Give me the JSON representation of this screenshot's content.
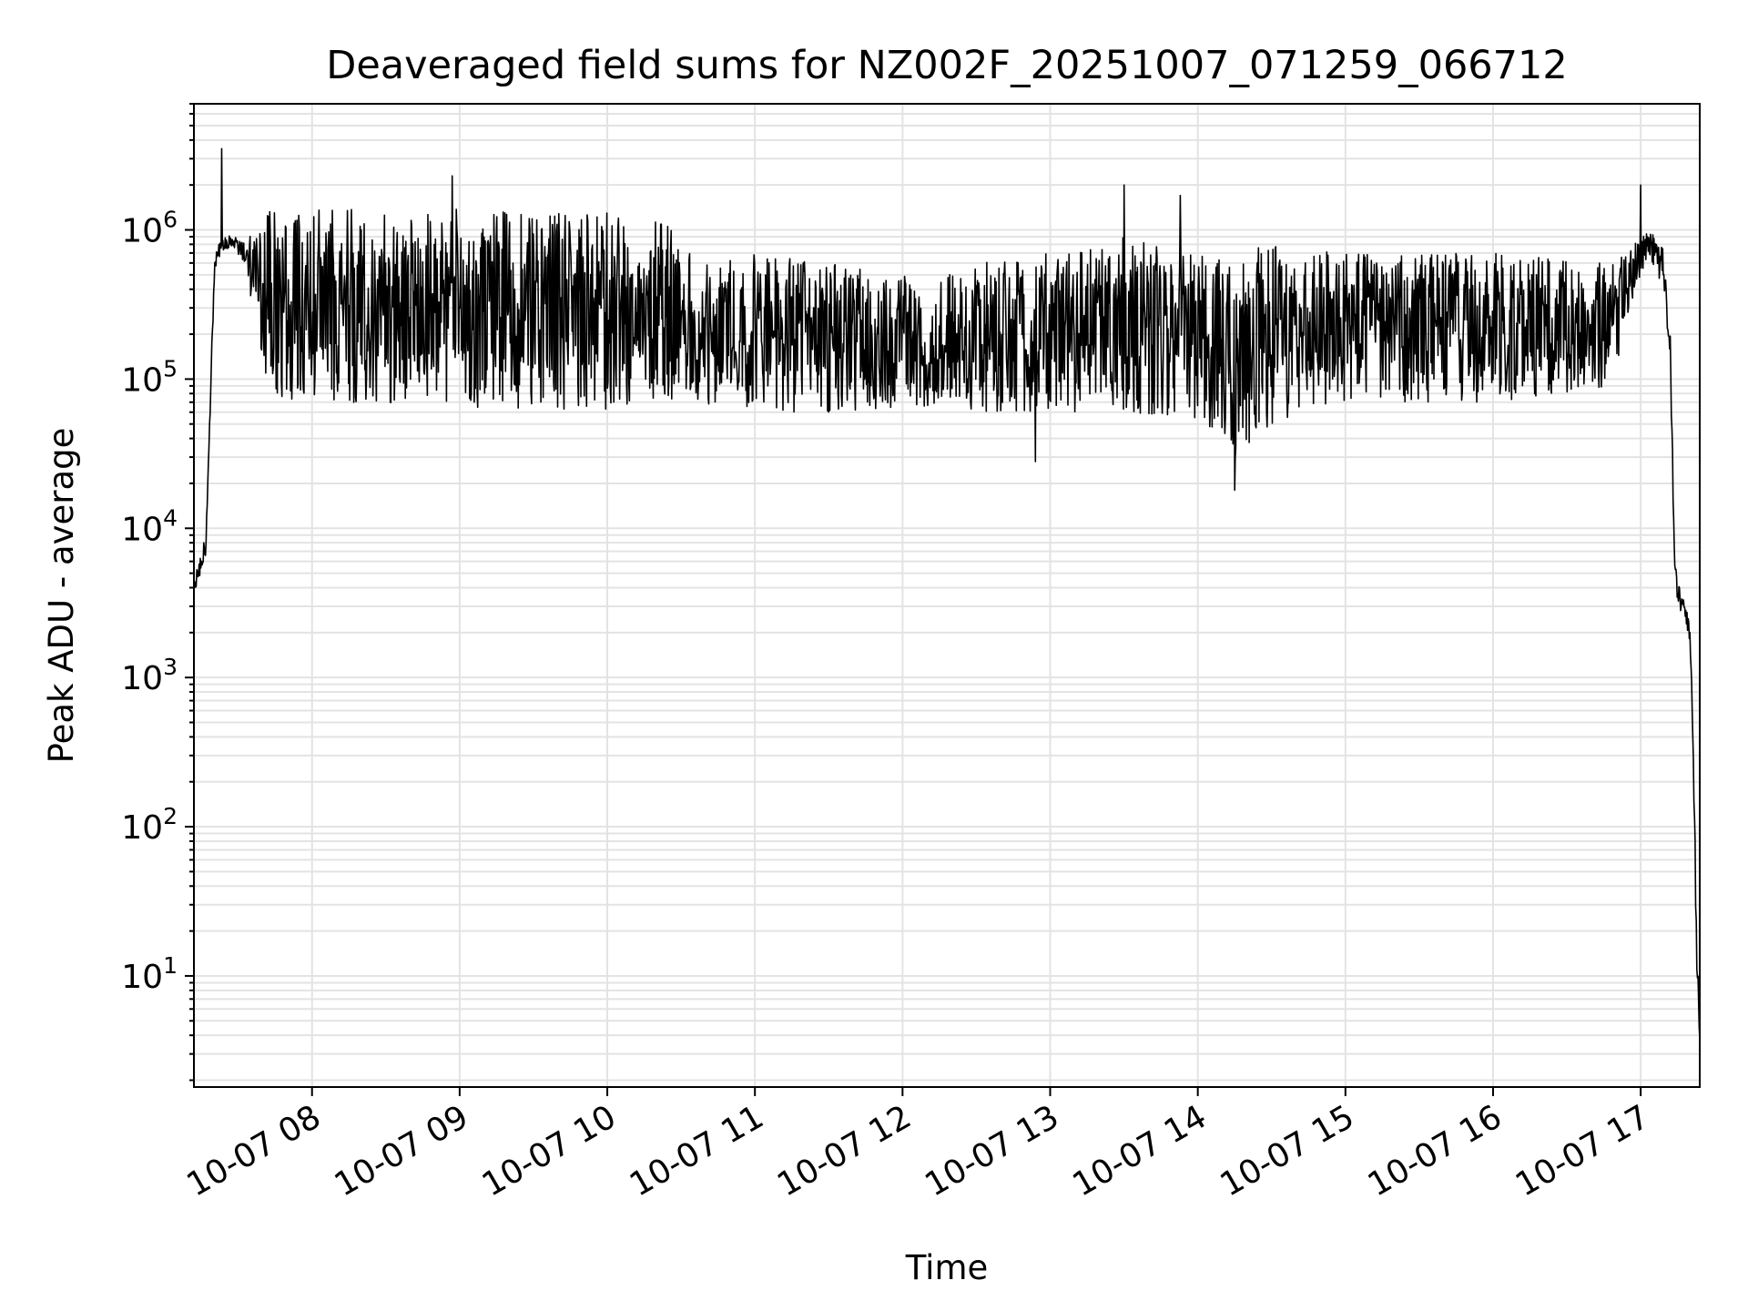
{
  "chart_data": {
    "type": "line",
    "title": "Deaveraged field sums for NZ002F_20251007_071259_066712",
    "xlabel": "Time",
    "ylabel": "Peak ADU - average",
    "yscale": "log",
    "xlim_hours": [
      7.2,
      17.4
    ],
    "ylim": [
      1.8,
      7000000
    ],
    "grid": true,
    "x_ticks": [
      {
        "hour": 8,
        "label": "10-07 08"
      },
      {
        "hour": 9,
        "label": "10-07 09"
      },
      {
        "hour": 10,
        "label": "10-07 10"
      },
      {
        "hour": 11,
        "label": "10-07 11"
      },
      {
        "hour": 12,
        "label": "10-07 12"
      },
      {
        "hour": 13,
        "label": "10-07 13"
      },
      {
        "hour": 14,
        "label": "10-07 14"
      },
      {
        "hour": 15,
        "label": "10-07 15"
      },
      {
        "hour": 16,
        "label": "10-07 16"
      },
      {
        "hour": 17,
        "label": "10-07 17"
      }
    ],
    "y_ticks": [
      {
        "exp": 1,
        "label": "10",
        "sup": "1"
      },
      {
        "exp": 2,
        "label": "10",
        "sup": "2"
      },
      {
        "exp": 3,
        "label": "10",
        "sup": "3"
      },
      {
        "exp": 4,
        "label": "10",
        "sup": "4"
      },
      {
        "exp": 5,
        "label": "10",
        "sup": "5"
      },
      {
        "exp": 6,
        "label": "10",
        "sup": "6"
      }
    ],
    "series": [
      {
        "name": "field sums",
        "color": "#000000",
        "envelope_hours": [
          7.2,
          7.28,
          7.34,
          7.38,
          7.45,
          7.55,
          7.65,
          7.75,
          8.0,
          9.0,
          10.0,
          10.35,
          10.6,
          11.0,
          11.5,
          12.0,
          12.5,
          13.0,
          13.5,
          14.0,
          14.25,
          14.5,
          15.0,
          16.0,
          16.8,
          16.95,
          17.05,
          17.15,
          17.2,
          17.23,
          17.25,
          17.3,
          17.33,
          17.35,
          17.38,
          17.4
        ],
        "envelope_low": [
          3500,
          6500,
          500000,
          700000,
          750000,
          600000,
          130000,
          75000,
          70000,
          65000,
          62000,
          60000,
          70000,
          60000,
          60000,
          65000,
          60000,
          60000,
          60000,
          55000,
          25000,
          50000,
          70000,
          70000,
          90000,
          350000,
          700000,
          400000,
          120000,
          5000,
          3000,
          2500,
          1800,
          500,
          10,
          3.5
        ],
        "envelope_high": [
          4500,
          9000,
          700000,
          850000,
          950000,
          800000,
          1300000,
          1350000,
          1400000,
          1400000,
          1300000,
          1200000,
          700000,
          700000,
          600000,
          500000,
          600000,
          700000,
          900000,
          800000,
          700000,
          800000,
          700000,
          700000,
          600000,
          800000,
          1000000,
          800000,
          200000,
          7000,
          5000,
          3000,
          2500,
          800,
          20,
          4
        ],
        "spikes": [
          {
            "hour": 7.39,
            "value": 3500000
          },
          {
            "hour": 8.95,
            "value": 2300000
          },
          {
            "hour": 13.5,
            "value": 2000000
          },
          {
            "hour": 13.88,
            "value": 1700000
          },
          {
            "hour": 17.0,
            "value": 2000000
          },
          {
            "hour": 14.25,
            "value": 18000
          },
          {
            "hour": 12.9,
            "value": 28000
          }
        ]
      }
    ]
  }
}
